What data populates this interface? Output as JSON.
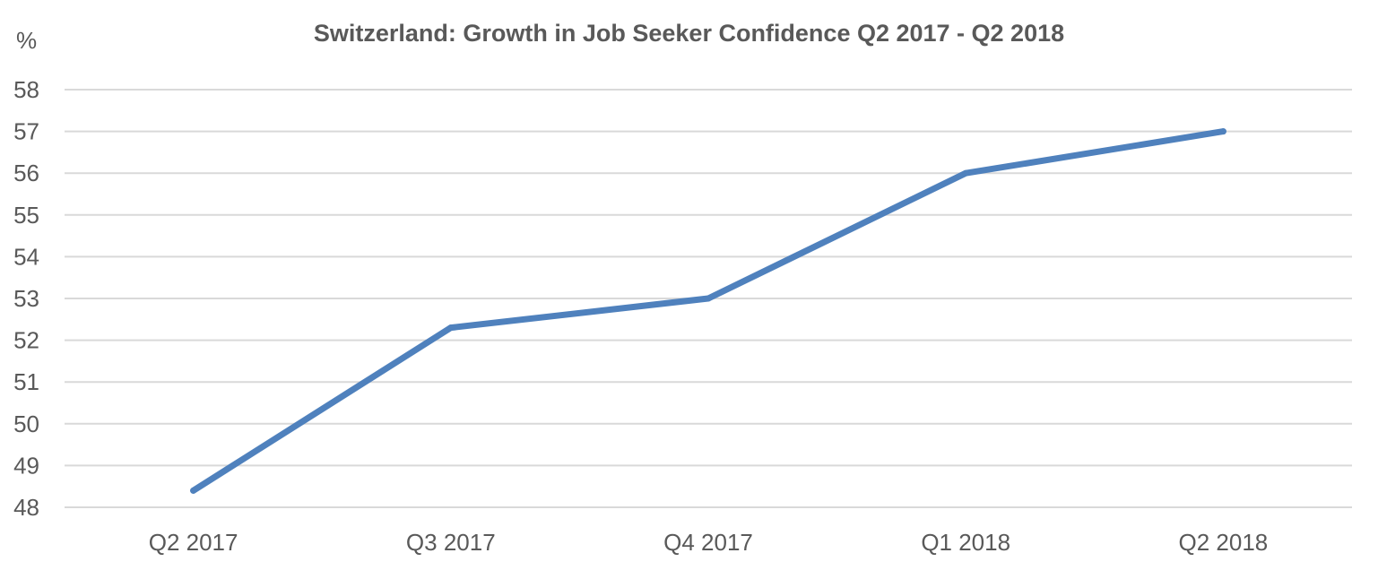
{
  "chart_data": {
    "type": "line",
    "title": "Switzerland: Growth in Job Seeker Confidence Q2 2017 - Q2 2018",
    "xlabel": "",
    "ylabel": "%",
    "ylim": [
      48,
      58
    ],
    "yticks": [
      48,
      49,
      50,
      51,
      52,
      53,
      54,
      55,
      56,
      57,
      58
    ],
    "categories": [
      "Q2 2017",
      "Q3 2017",
      "Q4 2017",
      "Q1 2018",
      "Q2 2018"
    ],
    "series": [
      {
        "values": [
          48.4,
          52.3,
          53.0,
          56.0,
          57.0
        ],
        "color": "#4f81bd"
      }
    ],
    "grid": true,
    "legend": "none"
  },
  "colors": {
    "gridline": "#d9d9d9",
    "axis_text": "#595959",
    "line": "#4f81bd"
  }
}
